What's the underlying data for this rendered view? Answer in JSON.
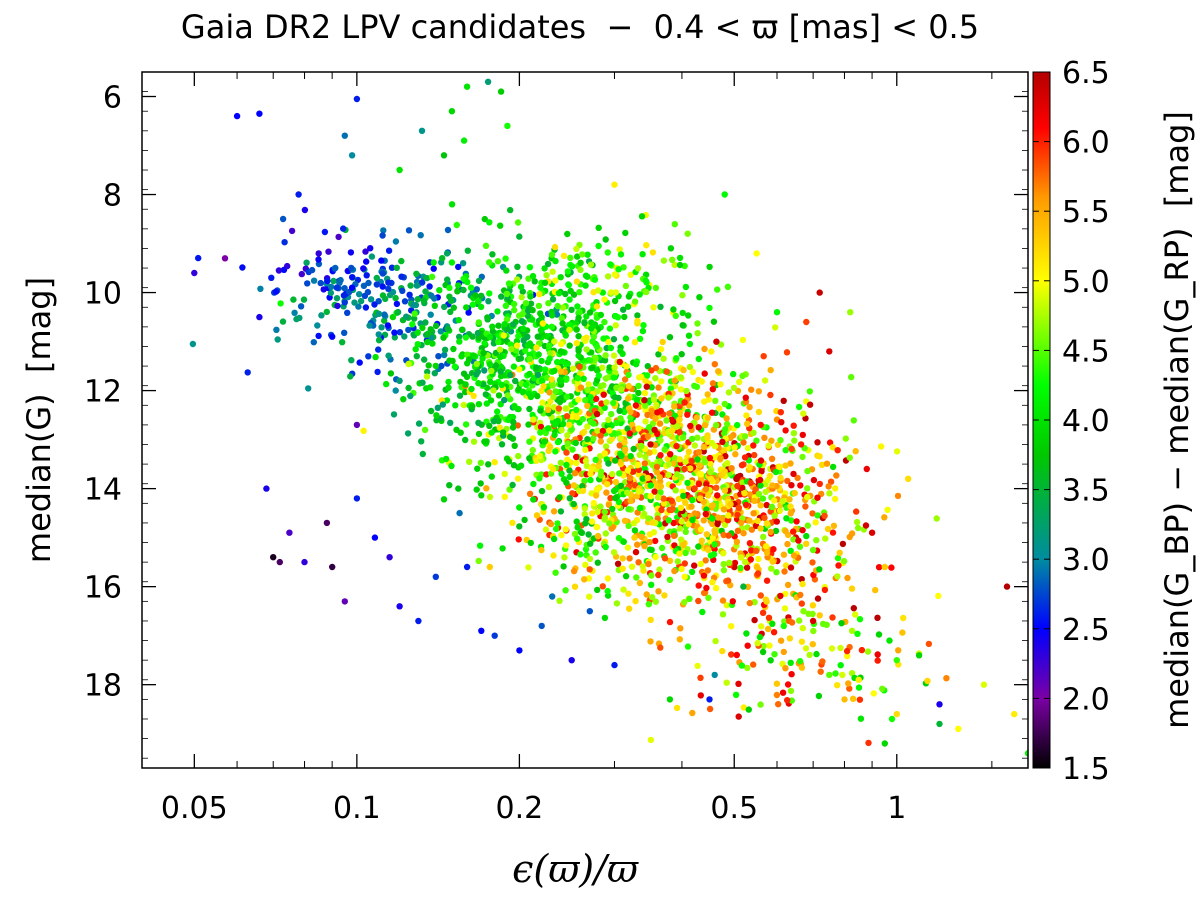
{
  "chart_data": {
    "type": "scatter",
    "title": "Gaia DR2 LPV candidates  −  0.4 < ϖ [mas] < 0.5",
    "xlabel": "ϵ(ϖ)/ϖ",
    "ylabel": "median(G)  [mag]",
    "colorbar_label": "median(G_BP) − median(G_RP)  [mag]",
    "xscale": "log",
    "xlim": [
      0.04,
      1.75
    ],
    "ylim": [
      19.7,
      5.5
    ],
    "y_inverted": true,
    "clim": [
      1.5,
      6.5
    ],
    "colormap": "black-purple-blue-teal-green-yellow-orange-red",
    "x_ticks": [
      {
        "value": 0.05,
        "label": "0.05"
      },
      {
        "value": 0.1,
        "label": "0.1"
      },
      {
        "value": 0.2,
        "label": "0.2"
      },
      {
        "value": 0.5,
        "label": "0.5"
      },
      {
        "value": 1,
        "label": "1"
      }
    ],
    "y_ticks": [
      {
        "value": 6,
        "label": "6"
      },
      {
        "value": 8,
        "label": "8"
      },
      {
        "value": 10,
        "label": "10"
      },
      {
        "value": 12,
        "label": "12"
      },
      {
        "value": 14,
        "label": "14"
      },
      {
        "value": 16,
        "label": "16"
      },
      {
        "value": 18,
        "label": "18"
      }
    ],
    "colorbar_ticks": [
      {
        "value": 1.5,
        "label": "1.5"
      },
      {
        "value": 2.0,
        "label": "2.0"
      },
      {
        "value": 2.5,
        "label": "2.5"
      },
      {
        "value": 3.0,
        "label": "3.0"
      },
      {
        "value": 3.5,
        "label": "3.5"
      },
      {
        "value": 4.0,
        "label": "4.0"
      },
      {
        "value": 4.5,
        "label": "4.5"
      },
      {
        "value": 5.0,
        "label": "5.0"
      },
      {
        "value": 5.5,
        "label": "5.5"
      },
      {
        "value": 6.0,
        "label": "6.0"
      },
      {
        "value": 6.5,
        "label": "6.5"
      }
    ],
    "points": [
      {
        "x": 0.05,
        "y": 9.6,
        "c": 2.3
      },
      {
        "x": 0.057,
        "y": 9.3,
        "c": 2.0
      },
      {
        "x": 0.06,
        "y": 6.4,
        "c": 2.5
      },
      {
        "x": 0.066,
        "y": 6.35,
        "c": 2.5
      },
      {
        "x": 0.1,
        "y": 6.05,
        "c": 2.6
      },
      {
        "x": 0.098,
        "y": 9.9,
        "c": 2.5
      },
      {
        "x": 0.085,
        "y": 9.2,
        "c": 2.3
      },
      {
        "x": 0.078,
        "y": 8.0,
        "c": 2.6
      },
      {
        "x": 0.073,
        "y": 8.5,
        "c": 2.8
      },
      {
        "x": 0.066,
        "y": 10.5,
        "c": 2.4
      },
      {
        "x": 0.09,
        "y": 10.9,
        "c": 2.5
      },
      {
        "x": 0.095,
        "y": 10.2,
        "c": 2.7
      },
      {
        "x": 0.16,
        "y": 5.8,
        "c": 4.0
      },
      {
        "x": 0.175,
        "y": 5.7,
        "c": 3.2
      },
      {
        "x": 0.185,
        "y": 5.9,
        "c": 3.8
      },
      {
        "x": 0.15,
        "y": 6.3,
        "c": 3.9
      },
      {
        "x": 0.158,
        "y": 6.9,
        "c": 4.1
      },
      {
        "x": 0.19,
        "y": 6.6,
        "c": 4.3
      },
      {
        "x": 0.145,
        "y": 7.2,
        "c": 3.7
      },
      {
        "x": 0.132,
        "y": 6.7,
        "c": 3.1
      },
      {
        "x": 0.098,
        "y": 7.2,
        "c": 3.0
      },
      {
        "x": 0.12,
        "y": 7.5,
        "c": 4.0
      },
      {
        "x": 0.095,
        "y": 6.8,
        "c": 2.9
      },
      {
        "x": 0.3,
        "y": 7.8,
        "c": 5.1
      },
      {
        "x": 0.07,
        "y": 15.4,
        "c": 1.6
      },
      {
        "x": 0.072,
        "y": 15.5,
        "c": 1.8
      },
      {
        "x": 0.068,
        "y": 14.0,
        "c": 2.4
      },
      {
        "x": 0.075,
        "y": 14.9,
        "c": 2.2
      },
      {
        "x": 0.08,
        "y": 15.5,
        "c": 2.3
      },
      {
        "x": 0.088,
        "y": 14.7,
        "c": 1.8
      },
      {
        "x": 0.09,
        "y": 15.6,
        "c": 1.7
      },
      {
        "x": 0.095,
        "y": 16.3,
        "c": 2.1
      },
      {
        "x": 0.1,
        "y": 14.2,
        "c": 2.6
      },
      {
        "x": 0.108,
        "y": 15.0,
        "c": 2.5
      },
      {
        "x": 0.115,
        "y": 15.4,
        "c": 2.3
      },
      {
        "x": 0.12,
        "y": 16.4,
        "c": 2.4
      },
      {
        "x": 0.13,
        "y": 16.7,
        "c": 2.6
      },
      {
        "x": 0.14,
        "y": 15.8,
        "c": 2.7
      },
      {
        "x": 0.155,
        "y": 14.5,
        "c": 2.9
      },
      {
        "x": 0.16,
        "y": 15.6,
        "c": 2.6
      },
      {
        "x": 0.17,
        "y": 16.9,
        "c": 2.5
      },
      {
        "x": 0.18,
        "y": 17.0,
        "c": 2.7
      },
      {
        "x": 0.2,
        "y": 17.3,
        "c": 2.5
      },
      {
        "x": 0.22,
        "y": 16.8,
        "c": 2.8
      },
      {
        "x": 0.25,
        "y": 17.5,
        "c": 2.4
      },
      {
        "x": 0.27,
        "y": 16.5,
        "c": 2.8
      },
      {
        "x": 0.3,
        "y": 17.6,
        "c": 2.6
      },
      {
        "x": 0.23,
        "y": 16.2,
        "c": 2.9
      },
      {
        "x": 0.1,
        "y": 12.7,
        "c": 2.1
      },
      {
        "x": 0.118,
        "y": 12.0,
        "c": 3.0
      },
      {
        "x": 0.12,
        "y": 11.8,
        "c": 3.2
      },
      {
        "x": 0.105,
        "y": 11.3,
        "c": 2.7
      },
      {
        "x": 0.45,
        "y": 18.3,
        "c": 2.6
      },
      {
        "x": 0.46,
        "y": 17.8,
        "c": 3.0
      },
      {
        "x": 0.52,
        "y": 16.0,
        "c": 3.5
      },
      {
        "x": 0.38,
        "y": 18.3,
        "c": 3.9
      },
      {
        "x": 1.2,
        "y": 18.4,
        "c": 2.4
      },
      {
        "x": 1.6,
        "y": 16.0,
        "c": 6.5
      },
      {
        "x": 1.75,
        "y": 19.4,
        "c": 4.2
      },
      {
        "x": 1.65,
        "y": 18.6,
        "c": 5.1
      },
      {
        "x": 1.45,
        "y": 18.0,
        "c": 4.9
      },
      {
        "x": 1.3,
        "y": 18.9,
        "c": 5.0
      },
      {
        "x": 1.2,
        "y": 18.8,
        "c": 3.5
      },
      {
        "x": 1.0,
        "y": 18.6,
        "c": 5.2
      },
      {
        "x": 0.95,
        "y": 19.2,
        "c": 3.9
      },
      {
        "x": 0.98,
        "y": 18.7,
        "c": 4.3
      },
      {
        "x": 1.05,
        "y": 13.8,
        "c": 5.2
      },
      {
        "x": 0.88,
        "y": 13.6,
        "c": 6.2
      },
      {
        "x": 0.82,
        "y": 10.4,
        "c": 4.7
      },
      {
        "x": 0.75,
        "y": 11.2,
        "c": 6.3
      },
      {
        "x": 0.72,
        "y": 10.0,
        "c": 6.4
      },
      {
        "x": 0.68,
        "y": 10.6,
        "c": 5.9
      },
      {
        "x": 0.55,
        "y": 9.2,
        "c": 5.0
      },
      {
        "x": 0.48,
        "y": 8.0,
        "c": 4.2
      },
      {
        "x": 0.41,
        "y": 8.8,
        "c": 4.6
      },
      {
        "x": 0.6,
        "y": 10.4,
        "c": 4.2
      },
      {
        "x": 0.9,
        "y": 14.9,
        "c": 6.3
      },
      {
        "x": 0.95,
        "y": 15.6,
        "c": 5.3
      },
      {
        "x": 1.0,
        "y": 17.5,
        "c": 4.4
      },
      {
        "x": 1.1,
        "y": 17.4,
        "c": 3.9
      },
      {
        "x": 0.85,
        "y": 17.9,
        "c": 5.1
      },
      {
        "x": 0.8,
        "y": 18.3,
        "c": 5.4
      },
      {
        "x": 0.75,
        "y": 17.8,
        "c": 4.5
      },
      {
        "x": 0.7,
        "y": 16.7,
        "c": 6.3
      }
    ],
    "clusters": [
      {
        "cx": 0.12,
        "cy": 10.3,
        "sx": 0.2,
        "sy": 0.65,
        "n": 220,
        "cmin": 2.5,
        "cmax": 3.6
      },
      {
        "cx": 0.085,
        "cy": 9.5,
        "sx": 0.12,
        "sy": 0.45,
        "n": 55,
        "cmin": 2.2,
        "cmax": 3.0
      },
      {
        "cx": 0.2,
        "cy": 10.9,
        "sx": 0.2,
        "sy": 0.8,
        "n": 420,
        "cmin": 3.4,
        "cmax": 4.5
      },
      {
        "cx": 0.26,
        "cy": 12.0,
        "sx": 0.22,
        "sy": 0.9,
        "n": 420,
        "cmin": 3.6,
        "cmax": 5.2
      },
      {
        "cx": 0.34,
        "cy": 13.0,
        "sx": 0.2,
        "sy": 0.95,
        "n": 420,
        "cmin": 4.0,
        "cmax": 6.2
      },
      {
        "cx": 0.45,
        "cy": 13.8,
        "sx": 0.2,
        "sy": 1.0,
        "n": 520,
        "cmin": 4.4,
        "cmax": 6.5
      },
      {
        "cx": 0.4,
        "cy": 14.8,
        "sx": 0.22,
        "sy": 0.9,
        "n": 300,
        "cmin": 3.8,
        "cmax": 6.0
      },
      {
        "cx": 0.6,
        "cy": 15.3,
        "sx": 0.18,
        "sy": 1.2,
        "n": 200,
        "cmin": 4.5,
        "cmax": 6.5
      },
      {
        "cx": 0.7,
        "cy": 17.3,
        "sx": 0.18,
        "sy": 0.8,
        "n": 110,
        "cmin": 3.8,
        "cmax": 6.2
      },
      {
        "cx": 0.25,
        "cy": 14.3,
        "sx": 0.15,
        "sy": 0.9,
        "n": 120,
        "cmin": 3.5,
        "cmax": 5.4
      },
      {
        "cx": 0.16,
        "cy": 12.2,
        "sx": 0.12,
        "sy": 0.7,
        "n": 90,
        "cmin": 3.2,
        "cmax": 4.1
      },
      {
        "cx": 0.3,
        "cy": 9.8,
        "sx": 0.18,
        "sy": 0.6,
        "n": 100,
        "cmin": 3.8,
        "cmax": 5.2
      }
    ]
  }
}
